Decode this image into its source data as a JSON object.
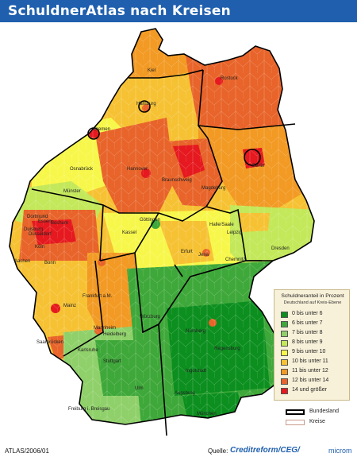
{
  "title": "SchuldnerAtlas nach Kreisen",
  "legend": {
    "title": "Schuldneranteil in Prozent",
    "subtitle": "Deutschland auf Kreis-Ebene",
    "items": [
      {
        "label": "0 bis unter 6",
        "color": "#0c8f1f"
      },
      {
        "label": "6 bis unter 7",
        "color": "#3fa83a"
      },
      {
        "label": "7 bis unter 8",
        "color": "#8fd06a"
      },
      {
        "label": "8 bis unter 9",
        "color": "#c3e85a"
      },
      {
        "label": "9 bis unter 10",
        "color": "#f7f74b"
      },
      {
        "label": "10 bis unter 11",
        "color": "#f6c234"
      },
      {
        "label": "11 bis unter 12",
        "color": "#f29a24"
      },
      {
        "label": "12 bis unter 14",
        "color": "#e8642a"
      },
      {
        "label": "14 und größer",
        "color": "#e5191f"
      }
    ]
  },
  "border_legend": {
    "bundesland": "Bundesland",
    "kreise": "Kreise"
  },
  "cities": [
    {
      "name": "Kiel"
    },
    {
      "name": "Rostock"
    },
    {
      "name": "Hamburg"
    },
    {
      "name": "Bremen"
    },
    {
      "name": "Berlin"
    },
    {
      "name": "Osnabrück"
    },
    {
      "name": "Hannover"
    },
    {
      "name": "Braunschweig"
    },
    {
      "name": "Magdeburg"
    },
    {
      "name": "Münster"
    },
    {
      "name": "Dortmund"
    },
    {
      "name": "Bochum"
    },
    {
      "name": "Essen"
    },
    {
      "name": "Duisburg"
    },
    {
      "name": "Düsseldorf"
    },
    {
      "name": "Köln"
    },
    {
      "name": "Aachen"
    },
    {
      "name": "Bonn"
    },
    {
      "name": "Göttingen"
    },
    {
      "name": "Kassel"
    },
    {
      "name": "Halle/Saale"
    },
    {
      "name": "Leipzig"
    },
    {
      "name": "Dresden"
    },
    {
      "name": "Erfurt"
    },
    {
      "name": "Jena"
    },
    {
      "name": "Chemnitz"
    },
    {
      "name": "Frankfurt a.M."
    },
    {
      "name": "Mainz"
    },
    {
      "name": "Mannheim"
    },
    {
      "name": "Heidelberg"
    },
    {
      "name": "Würzburg"
    },
    {
      "name": "Nürnberg"
    },
    {
      "name": "Saarbrücken"
    },
    {
      "name": "Karlsruhe"
    },
    {
      "name": "Stuttgart"
    },
    {
      "name": "Regensburg"
    },
    {
      "name": "Ingolstadt"
    },
    {
      "name": "Ulm"
    },
    {
      "name": "Augsburg"
    },
    {
      "name": "München"
    },
    {
      "name": "Freiburg i. Breisgau"
    }
  ],
  "footer": {
    "atlas": "ATLAS/2006/01",
    "source_label": "Quelle:",
    "source_brand": "Creditreform/CEG/",
    "source_suffix": "microm"
  }
}
